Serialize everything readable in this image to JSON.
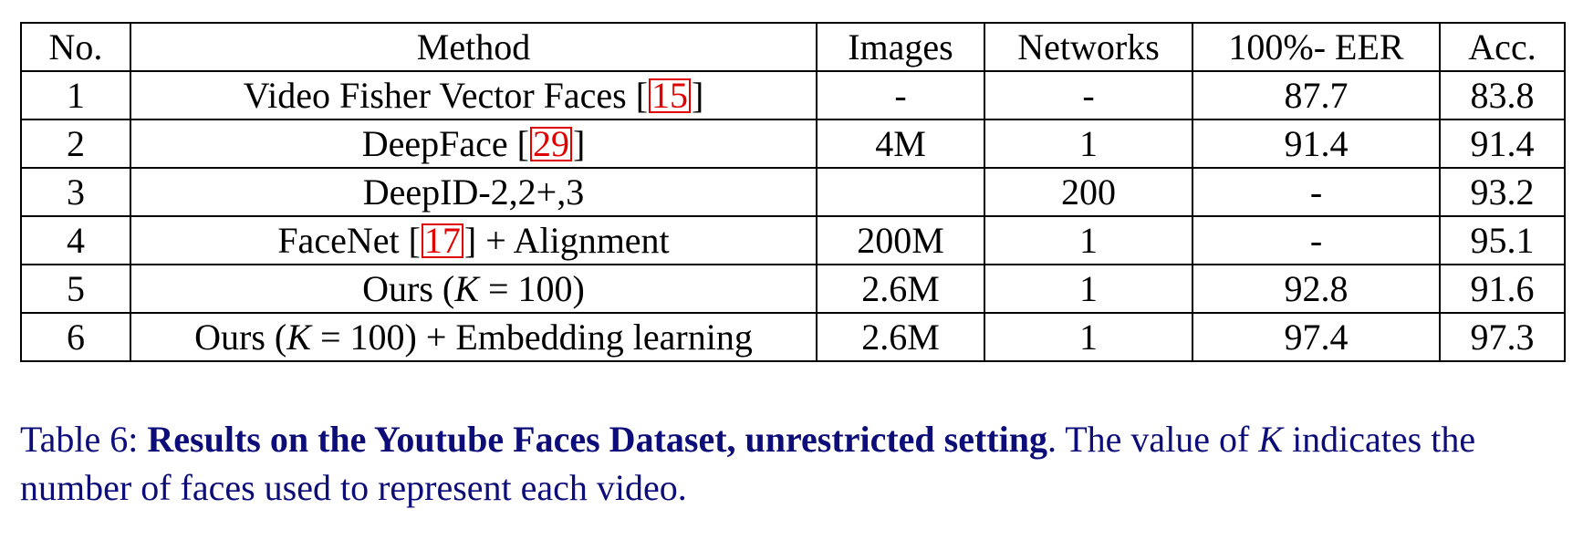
{
  "table": {
    "headers": {
      "no": "No.",
      "method": "Method",
      "images": "Images",
      "networks": "Networks",
      "eer": "100%- EER",
      "acc": "Acc."
    },
    "rows": [
      {
        "no": "1",
        "method_pre": "Video Fisher Vector Faces [",
        "cite": "15",
        "method_post": "]",
        "images": "-",
        "networks": "-",
        "eer": "87.7",
        "acc": "83.8"
      },
      {
        "no": "2",
        "method_pre": "DeepFace [",
        "cite": "29",
        "method_post": "]",
        "images": "4M",
        "networks": "1",
        "eer": "91.4",
        "acc": "91.4"
      },
      {
        "no": "3",
        "method": "DeepID-2,2+,3",
        "images": "",
        "networks": "200",
        "eer": "-",
        "acc": "93.2"
      },
      {
        "no": "4",
        "method_pre": "FaceNet [",
        "cite": "17",
        "method_post": "] + Alignment",
        "images": "200M",
        "networks": "1",
        "eer": "-",
        "acc": "95.1"
      },
      {
        "no": "5",
        "method_pre": "Ours (",
        "math_k": "K",
        "method_post": " = 100)",
        "images": "2.6M",
        "networks": "1",
        "eer": "92.8",
        "acc": "91.6"
      },
      {
        "no": "6",
        "method_pre": "Ours (",
        "math_k": "K",
        "method_post": " = 100) + Embedding learning",
        "images": "2.6M",
        "networks": "1",
        "eer": "97.4",
        "acc": "97.3"
      }
    ]
  },
  "caption": {
    "label": "Table 6:",
    "title": "Results on the Youtube Faces Dataset, unrestricted setting",
    "text_pre": ".  The value of ",
    "math_k": "K",
    "text_post": " indicates the number of faces used to represent each video."
  },
  "colors": {
    "caption": "#0d0d7a",
    "citation_box": "#e00000",
    "rule": "#000000"
  }
}
